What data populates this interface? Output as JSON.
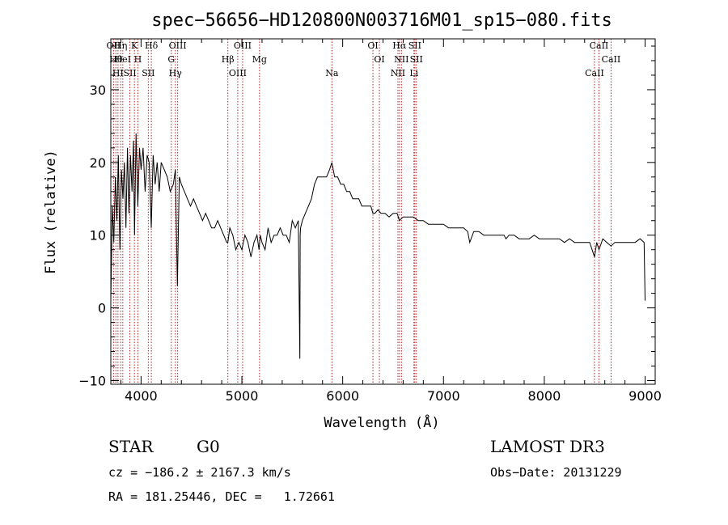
{
  "chart_data": {
    "type": "line",
    "title": "spec−56656−HD120800N003716M01_sp15−080.fits",
    "xlabel": "Wavelength (Å)",
    "ylabel": "Flux (relative)",
    "xlim": [
      3700,
      9100
    ],
    "ylim": [
      -10.5,
      37
    ],
    "x_ticks": [
      4000,
      5000,
      6000,
      7000,
      8000,
      9000
    ],
    "x_tick_labels": [
      "4000",
      "5000",
      "6000",
      "7000",
      "8000",
      "9000"
    ],
    "y_ticks": [
      -10,
      0,
      10,
      20,
      30
    ],
    "y_tick_labels": [
      "−10",
      "0",
      "10",
      "20",
      "30"
    ],
    "grid": false,
    "line_color": "#000000",
    "marker_color": "#b22222",
    "series": [
      {
        "values_x": [
          3700,
          3715,
          3730,
          3745,
          3760,
          3775,
          3790,
          3805,
          3820,
          3835,
          3850,
          3865,
          3880,
          3895,
          3910,
          3925,
          3935,
          3950,
          3968,
          3985,
          4000,
          4020,
          4040,
          4060,
          4080,
          4101,
          4120,
          4140,
          4160,
          4180,
          4200,
          4230,
          4260,
          4290,
          4320,
          4340,
          4360,
          4380,
          4400,
          4430,
          4460,
          4490,
          4520,
          4550,
          4580,
          4610,
          4640,
          4670,
          4700,
          4730,
          4760,
          4790,
          4820,
          4850,
          4861,
          4880,
          4910,
          4940,
          4970,
          5000,
          5030,
          5060,
          5090,
          5120,
          5150,
          5170,
          5183,
          5200,
          5230,
          5260,
          5290,
          5320,
          5350,
          5380,
          5410,
          5440,
          5470,
          5500,
          5530,
          5560,
          5575,
          5578,
          5582,
          5600,
          5630,
          5660,
          5690,
          5720,
          5750,
          5780,
          5810,
          5840,
          5870,
          5893,
          5920,
          5950,
          5980,
          6010,
          6040,
          6070,
          6100,
          6130,
          6160,
          6190,
          6220,
          6250,
          6280,
          6300,
          6320,
          6350,
          6380,
          6420,
          6460,
          6500,
          6540,
          6563,
          6600,
          6650,
          6700,
          6750,
          6800,
          6850,
          6900,
          6950,
          7000,
          7050,
          7100,
          7150,
          7200,
          7240,
          7260,
          7300,
          7350,
          7400,
          7450,
          7500,
          7550,
          7600,
          7620,
          7650,
          7700,
          7750,
          7800,
          7850,
          7900,
          7950,
          8000,
          8050,
          8100,
          8150,
          8200,
          8250,
          8300,
          8350,
          8400,
          8450,
          8498,
          8520,
          8542,
          8580,
          8620,
          8662,
          8700,
          8750,
          8800,
          8850,
          8900,
          8950,
          8990,
          9000
        ],
        "values_y": [
          1,
          14,
          9,
          18,
          12,
          21,
          8,
          19,
          15,
          20,
          11,
          22,
          13,
          21,
          16,
          23,
          10,
          24,
          14,
          22,
          19,
          22,
          16,
          21,
          20,
          11,
          21,
          17,
          20,
          16,
          20,
          19,
          18,
          16,
          17,
          19,
          3,
          18,
          17,
          16,
          15,
          14,
          15,
          14,
          13,
          12,
          13,
          12,
          11,
          11,
          12,
          11,
          10,
          9,
          9,
          11,
          10,
          8,
          9,
          8,
          10,
          9,
          7,
          9,
          10,
          8,
          10,
          9,
          8,
          11,
          9,
          10,
          10,
          11,
          10,
          10,
          9,
          12,
          11,
          12,
          -7,
          10,
          11,
          12,
          13,
          14,
          15,
          17,
          18,
          18,
          18,
          18,
          19,
          20,
          18,
          18,
          17,
          17,
          16,
          16,
          15,
          15,
          15,
          14,
          14,
          14,
          14,
          13,
          13,
          13.5,
          13,
          13,
          12.5,
          13,
          13,
          12,
          12.5,
          12.5,
          12.5,
          12,
          12,
          11.5,
          11.5,
          11.5,
          11.5,
          11,
          11,
          11,
          11,
          10.5,
          9,
          10.5,
          10.5,
          10,
          10,
          10,
          10,
          10,
          9.5,
          10,
          10,
          9.5,
          9.5,
          9.5,
          10,
          9.5,
          9.5,
          9.5,
          9.5,
          9.5,
          9,
          9.5,
          9,
          9,
          9,
          9,
          7,
          9,
          8,
          9.5,
          9,
          8.5,
          9,
          9,
          9,
          9,
          9,
          9.5,
          9,
          1
        ]
      }
    ],
    "line_markers": [
      {
        "x": 3727,
        "label": "OII"
      },
      {
        "x": 3750,
        "label": "Hθ"
      },
      {
        "x": 3771,
        "label": "HI"
      },
      {
        "x": 3798,
        "label": "Hη"
      },
      {
        "x": 3819,
        "label": "HeI"
      },
      {
        "x": 3889,
        "label": "SII"
      },
      {
        "x": 3934,
        "label": "K"
      },
      {
        "x": 3968,
        "label": "H"
      },
      {
        "x": 4072,
        "label": "SII"
      },
      {
        "x": 4102,
        "label": "Hδ"
      },
      {
        "x": 4300,
        "label": "G"
      },
      {
        "x": 4340,
        "label": "Hγ"
      },
      {
        "x": 4363,
        "label": "OIII"
      },
      {
        "x": 4861,
        "label": "Hβ"
      },
      {
        "x": 4959,
        "label": "OIII"
      },
      {
        "x": 5007,
        "label": "OIII"
      },
      {
        "x": 5175,
        "label": "Mg"
      },
      {
        "x": 5893,
        "label": "Na"
      },
      {
        "x": 6300,
        "label": "OI"
      },
      {
        "x": 6364,
        "label": "OI"
      },
      {
        "x": 6548,
        "label": "NII"
      },
      {
        "x": 6563,
        "label": "Hα"
      },
      {
        "x": 6583,
        "label": "NII"
      },
      {
        "x": 6707,
        "label": "Li"
      },
      {
        "x": 6716,
        "label": "SII"
      },
      {
        "x": 6731,
        "label": "SII"
      },
      {
        "x": 8498,
        "label": "CaII"
      },
      {
        "x": 8542,
        "label": "CaII"
      },
      {
        "x": 8662,
        "label": "CaII"
      }
    ]
  },
  "info": {
    "class": "STAR",
    "subclass": "G0",
    "survey": "LAMOST DR3",
    "cz": "cz = −186.2 ± 2167.3 km/s",
    "obs_date": "Obs−Date: 20131229",
    "radec": "RA = 181.25446, DEC =   1.72661"
  }
}
